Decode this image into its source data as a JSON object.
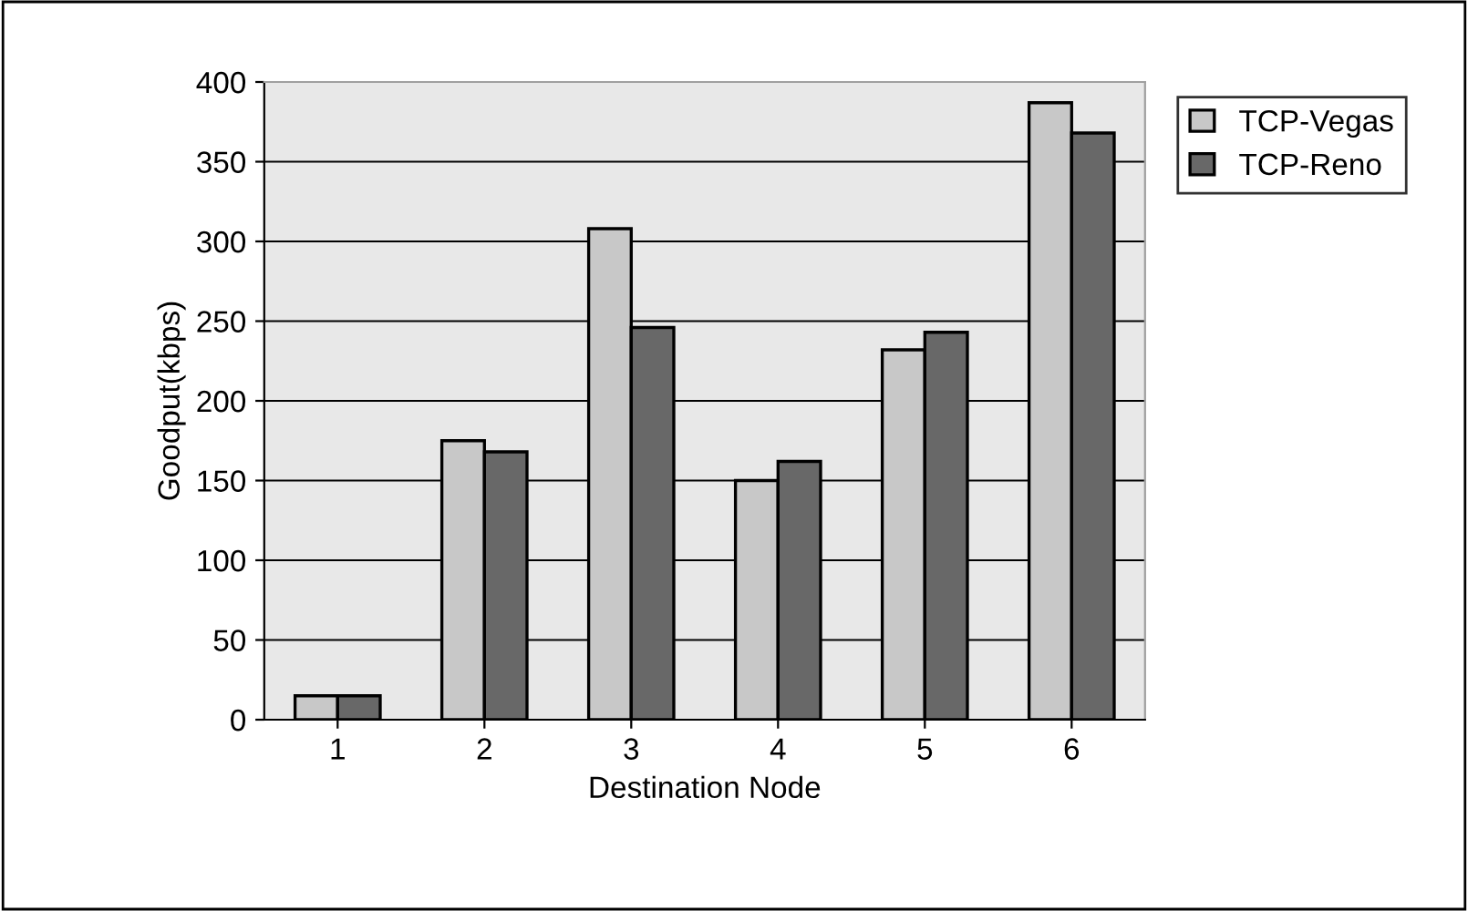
{
  "chart_data": {
    "type": "bar",
    "xlabel": "Destination Node",
    "ylabel": "Goodput(kbps)",
    "categories": [
      "1",
      "2",
      "3",
      "4",
      "5",
      "6"
    ],
    "series": [
      {
        "name": "TCP-Vegas",
        "color": "#c8c8c8",
        "values": [
          15,
          175,
          308,
          150,
          232,
          387
        ]
      },
      {
        "name": "TCP-Reno",
        "color": "#686868",
        "values": [
          15,
          168,
          246,
          162,
          243,
          368
        ]
      }
    ],
    "ylim": [
      0,
      400
    ],
    "yticks": [
      0,
      50,
      100,
      150,
      200,
      250,
      300,
      350,
      400
    ],
    "grid": "y",
    "legend": "top right"
  }
}
